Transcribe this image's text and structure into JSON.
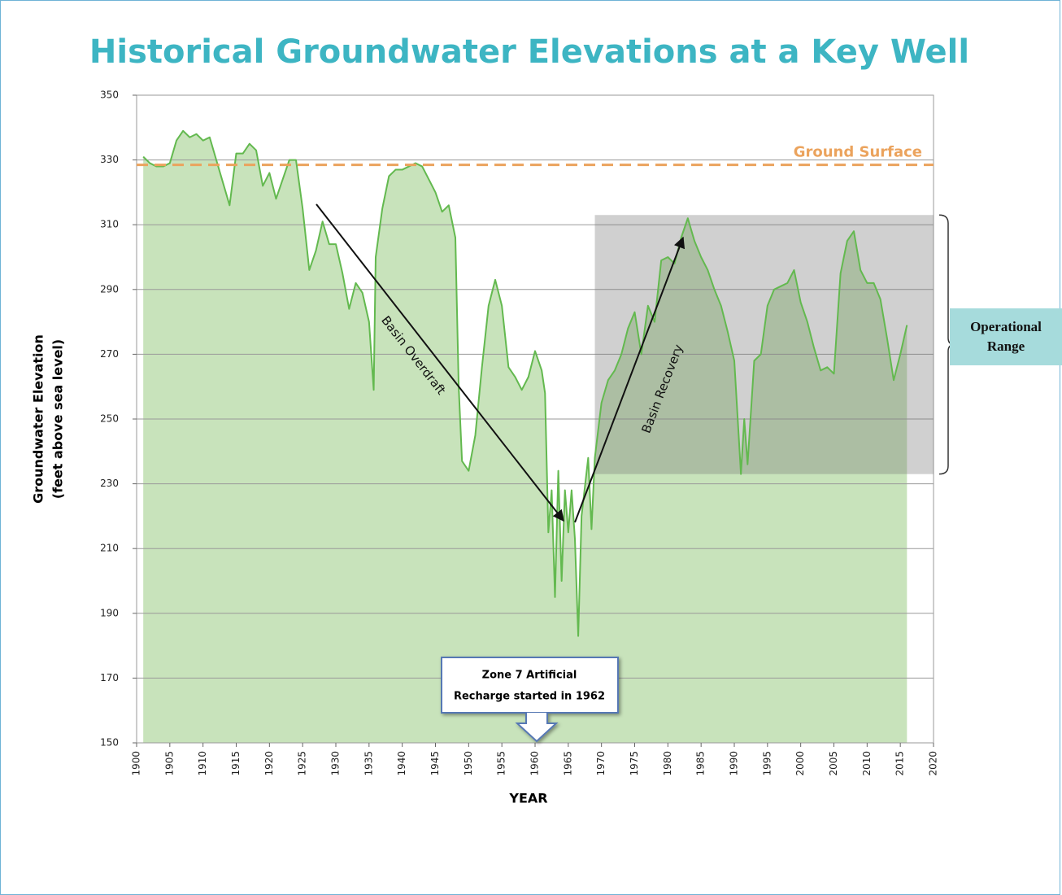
{
  "chart_data": {
    "type": "area",
    "title": "Historical Groundwater Elevations at a Key Well",
    "xlabel": "YEAR",
    "ylabel": [
      "Groundwater Elevation",
      "(feet above sea level)"
    ],
    "color": "#63b94f",
    "fill": "#c8e3bb",
    "x": [
      1901,
      1902,
      1903,
      1904,
      1905,
      1906,
      1907,
      1908,
      1909,
      1910,
      1911,
      1912,
      1913,
      1914,
      1915,
      1916,
      1917,
      1918,
      1919,
      1920,
      1921,
      1922,
      1923,
      1924,
      1925,
      1926,
      1927,
      1928,
      1929,
      1930,
      1931,
      1932,
      1933,
      1934,
      1935,
      1935.7,
      1936,
      1937,
      1938,
      1939,
      1940,
      1941,
      1942,
      1943,
      1944,
      1945,
      1946,
      1947,
      1948,
      1948.5,
      1949,
      1950,
      1951,
      1952,
      1953,
      1954,
      1955,
      1956,
      1957,
      1958,
      1959,
      1960,
      1961,
      1961.5,
      1962,
      1962.5,
      1963,
      1963.5,
      1964,
      1964.5,
      1965,
      1965.5,
      1966,
      1966.5,
      1967,
      1968,
      1968.5,
      1969,
      1970,
      1971,
      1972,
      1973,
      1974,
      1975,
      1976,
      1977,
      1978,
      1979,
      1980,
      1981,
      1982,
      1983,
      1984,
      1985,
      1986,
      1987,
      1988,
      1989,
      1990,
      1991,
      1991.5,
      1992,
      1993,
      1994,
      1995,
      1996,
      1997,
      1998,
      1999,
      2000,
      2001,
      2002,
      2003,
      2004,
      2005,
      2006,
      2007,
      2008,
      2009,
      2010,
      2011,
      2012,
      2013,
      2014,
      2015,
      2016
    ],
    "values": [
      331,
      329,
      328,
      328,
      329,
      336,
      339,
      337,
      338,
      336,
      337,
      330,
      323,
      316,
      332,
      332,
      335,
      333,
      322,
      326,
      318,
      324,
      330,
      330,
      315,
      296,
      302,
      311,
      304,
      304,
      295,
      284,
      292,
      289,
      280,
      259,
      300,
      315,
      325,
      327,
      327,
      328,
      329,
      328,
      324,
      320,
      314,
      316,
      306,
      260,
      237,
      234,
      245,
      266,
      285,
      293,
      285,
      266,
      263,
      259,
      263,
      271,
      265,
      258,
      215,
      228,
      195,
      234,
      200,
      228,
      215,
      228,
      213,
      183,
      220,
      238,
      216,
      238,
      255,
      262,
      265,
      270,
      278,
      283,
      270,
      285,
      280,
      299,
      300,
      298,
      306,
      312,
      305,
      300,
      296,
      290,
      285,
      277,
      268,
      233,
      250,
      236,
      268,
      270,
      285,
      290,
      291,
      292,
      296,
      286,
      280,
      272,
      265,
      266,
      264,
      295,
      305,
      308,
      296,
      292,
      292,
      287,
      275,
      262,
      270,
      279
    ],
    "xlim": [
      1900,
      2020
    ],
    "xticks": [
      1900,
      1905,
      1910,
      1915,
      1920,
      1925,
      1930,
      1935,
      1940,
      1945,
      1950,
      1955,
      1960,
      1965,
      1970,
      1975,
      1980,
      1985,
      1990,
      1995,
      2000,
      2005,
      2010,
      2015,
      2020
    ],
    "ylim": [
      150,
      350
    ],
    "yticks": [
      150,
      170,
      190,
      210,
      230,
      250,
      270,
      290,
      310,
      330,
      350
    ],
    "grid": true,
    "reference_line": {
      "label": "Ground Surface",
      "value": 328.5,
      "color": "#eba35d"
    },
    "range_band": {
      "label": "Operational Range",
      "xlim": [
        1969,
        2020
      ],
      "ylim": [
        233,
        313
      ]
    },
    "annotations": [
      "Basin Overdraft",
      "Basin Recovery"
    ],
    "callout": [
      "Zone 7 Artificial",
      "Recharge started in 1962"
    ]
  }
}
